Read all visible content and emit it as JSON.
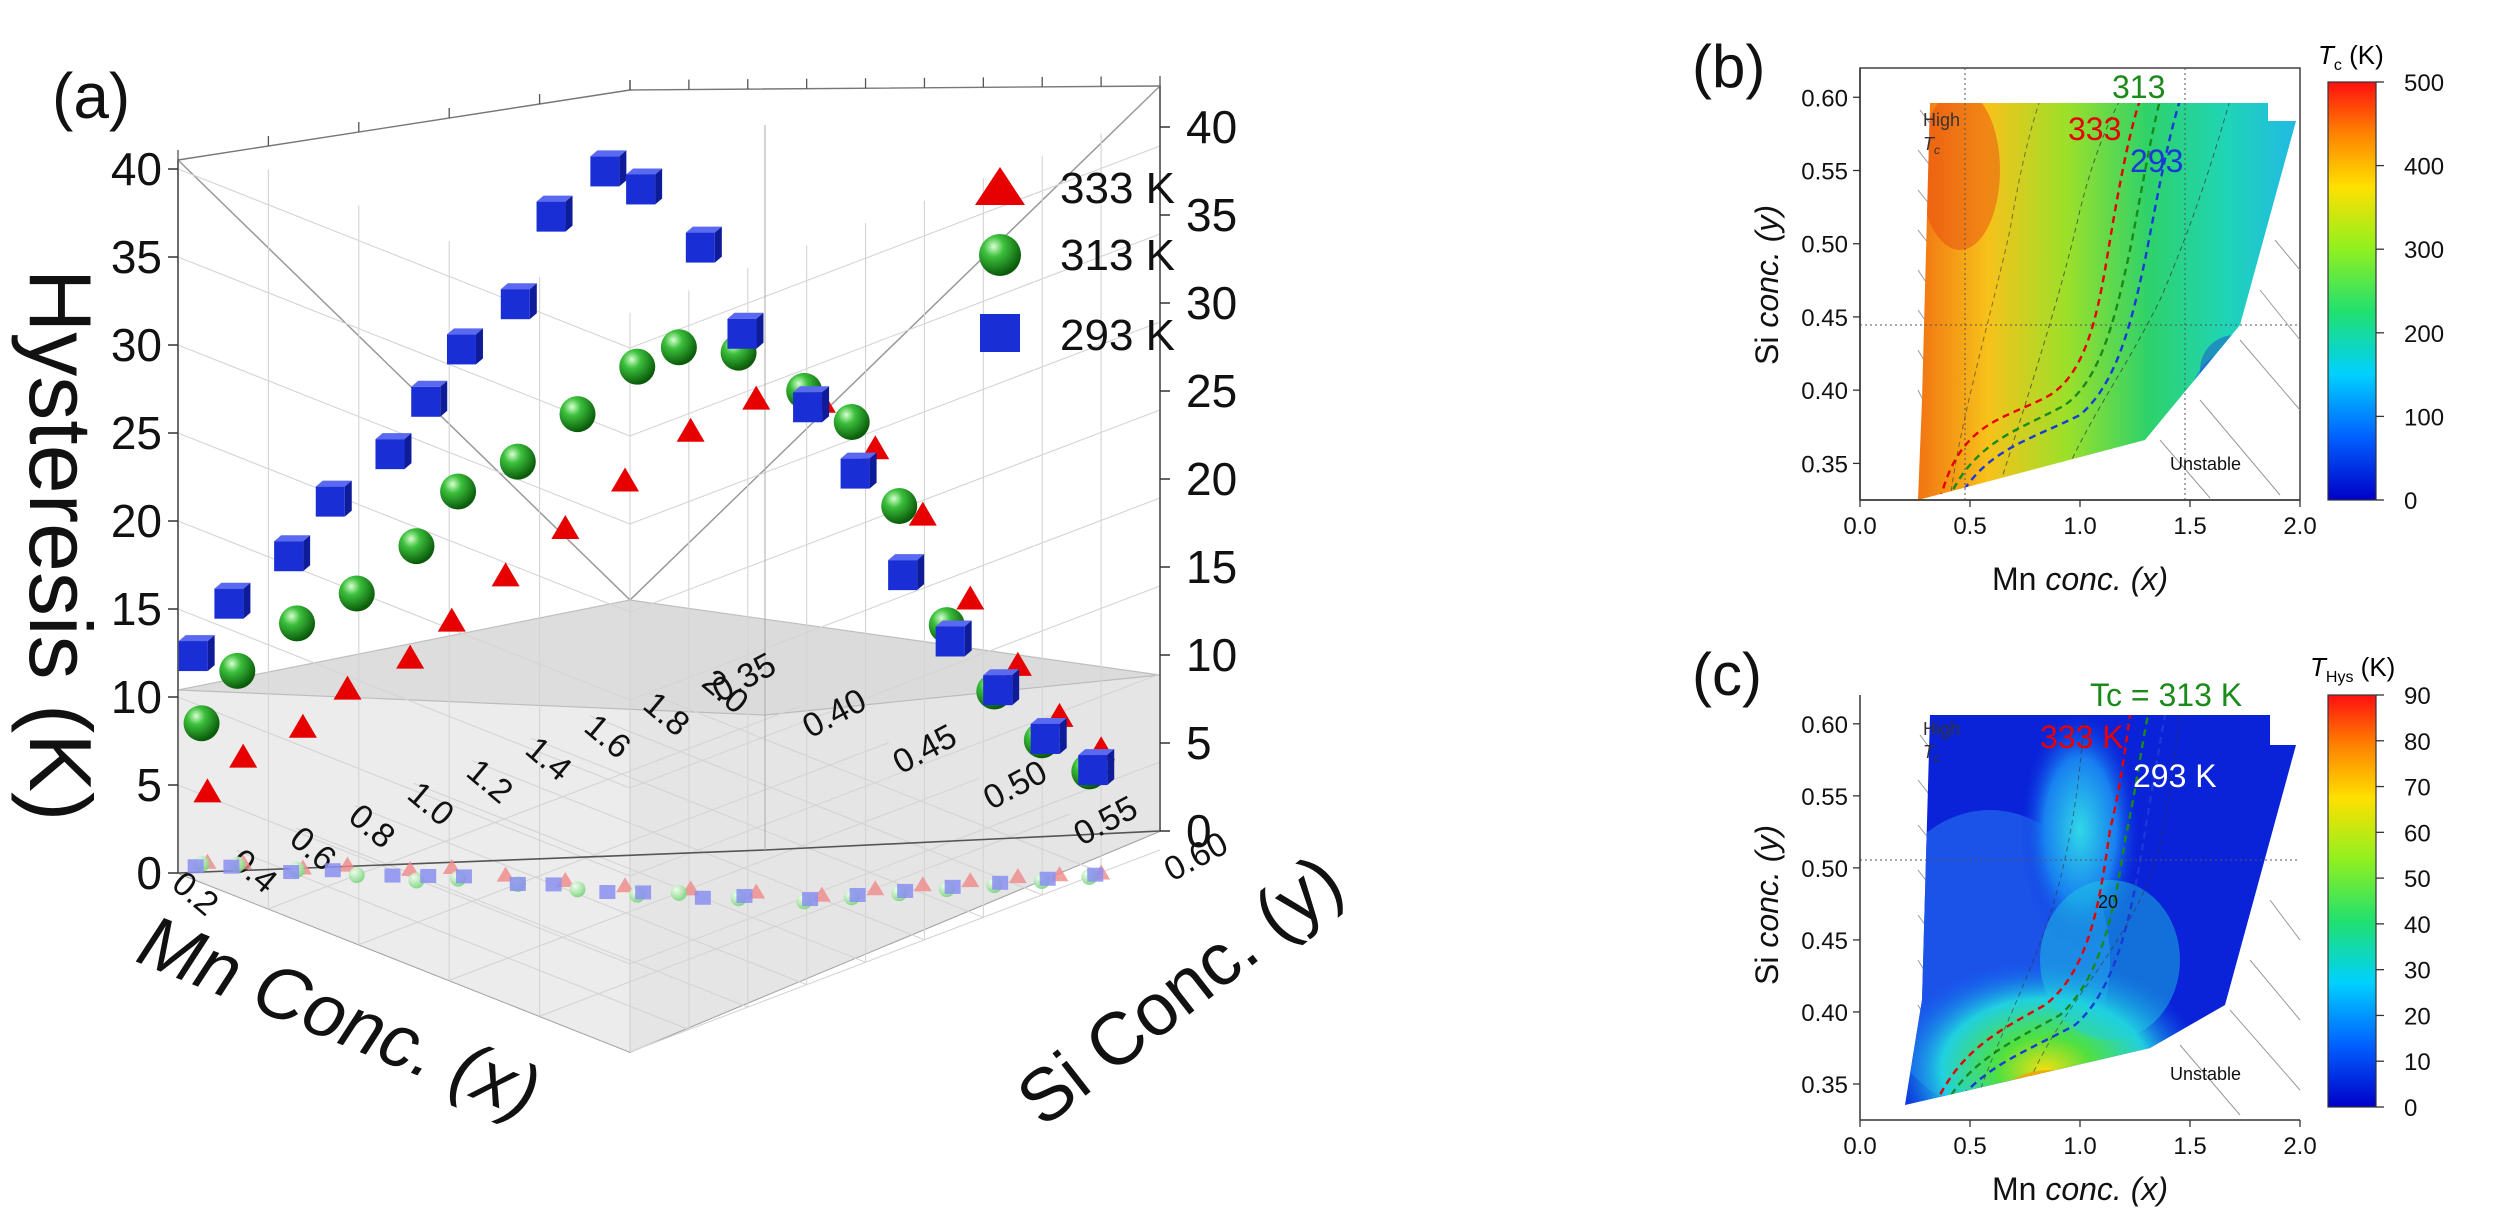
{
  "chart_data": [
    {
      "panel": "(a)",
      "type": "scatter",
      "zlabel": "Hysteresis (K)",
      "xlabel": "Mn Conc. (x)",
      "ylabel": "Si Conc. (y)",
      "xlim": [
        0.2,
        2.0
      ],
      "ylim": [
        0.35,
        0.6
      ],
      "zlim": [
        0,
        42
      ],
      "xticks": [
        "0.2",
        "0.4",
        "0.6",
        "0.8",
        "1.0",
        "1.2",
        "1.4",
        "1.6",
        "1.8",
        "2.0"
      ],
      "yticks": [
        "0.35",
        "0.40",
        "0.45",
        "0.50",
        "0.55",
        "0.60"
      ],
      "zticks": [
        "0",
        "5",
        "10",
        "15",
        "20",
        "25",
        "30",
        "35",
        "40"
      ],
      "legend": [
        "333 K",
        "313 K",
        "293 K"
      ],
      "legend_position": "top-right",
      "series": [
        {
          "name": "333 K",
          "marker": "triangle",
          "color": "#e60000",
          "x": [
            0.3,
            0.36,
            0.44,
            0.53,
            0.62,
            0.7,
            0.76,
            0.84,
            0.92,
            1.02,
            1.12,
            1.22,
            1.34,
            1.44,
            1.54,
            1.64,
            1.72,
            1.8
          ],
          "y": [
            0.35,
            0.36,
            0.38,
            0.39,
            0.41,
            0.42,
            0.44,
            0.46,
            0.48,
            0.5,
            0.52,
            0.54,
            0.55,
            0.56,
            0.57,
            0.58,
            0.59,
            0.6
          ],
          "z": [
            4,
            6,
            8,
            10,
            12,
            14,
            17,
            20,
            23,
            26,
            28,
            28,
            25,
            21,
            16,
            12,
            9,
            7
          ]
        },
        {
          "name": "313 K",
          "marker": "sphere",
          "color": "#1aa81a",
          "x": [
            0.28,
            0.34,
            0.42,
            0.5,
            0.58,
            0.66,
            0.74,
            0.82,
            0.9,
            0.98,
            1.06,
            1.16,
            1.26,
            1.36,
            1.46,
            1.56,
            1.66,
            1.76
          ],
          "y": [
            0.35,
            0.36,
            0.38,
            0.4,
            0.42,
            0.43,
            0.45,
            0.47,
            0.49,
            0.5,
            0.52,
            0.54,
            0.55,
            0.56,
            0.57,
            0.58,
            0.59,
            0.6
          ],
          "z": [
            8,
            11,
            14,
            16,
            19,
            22,
            24,
            27,
            30,
            31,
            31,
            29,
            27,
            22,
            15,
            11,
            8,
            6
          ]
        },
        {
          "name": "293 K",
          "marker": "cube",
          "color": "#1a2ed6",
          "x": [
            0.26,
            0.32,
            0.4,
            0.48,
            0.56,
            0.62,
            0.68,
            0.74,
            0.8,
            0.86,
            0.92,
            1.0,
            1.08,
            1.18,
            1.28,
            1.38,
            1.48,
            1.58,
            1.68,
            1.78
          ],
          "y": [
            0.35,
            0.36,
            0.38,
            0.39,
            0.41,
            0.42,
            0.43,
            0.45,
            0.46,
            0.48,
            0.49,
            0.51,
            0.52,
            0.54,
            0.55,
            0.56,
            0.57,
            0.58,
            0.59,
            0.6
          ],
          "z": [
            12,
            15,
            18,
            21,
            24,
            27,
            30,
            33,
            38,
            41,
            40,
            37,
            32,
            28,
            24,
            18,
            14,
            11,
            8,
            6
          ]
        }
      ]
    },
    {
      "panel": "(b)",
      "type": "heatmap",
      "xlabel_prefix": "Mn ",
      "xlabel_italic": "conc. (x)",
      "ylabel_prefix": "Si ",
      "ylabel_italic": "conc. (y)",
      "xlim": [
        0.0,
        2.0
      ],
      "ylim": [
        0.325,
        0.62
      ],
      "xticks": [
        "0.0",
        "0.5",
        "1.0",
        "1.5",
        "2.0"
      ],
      "yticks": [
        "0.35",
        "0.40",
        "0.45",
        "0.50",
        "0.55",
        "0.60"
      ],
      "colorbar": {
        "title_sym": "T",
        "title_sub": "c",
        "title_unit": " (K)",
        "min": 0,
        "max": 500,
        "ticks": [
          "0",
          "100",
          "200",
          "300",
          "400",
          "500"
        ]
      },
      "contour_labels": [
        {
          "text": "313",
          "color": "#1a8a1a"
        },
        {
          "text": "333",
          "color": "#e60000"
        },
        {
          "text": "293",
          "color": "#1a3ad6"
        }
      ],
      "region_labels": {
        "high": "High",
        "high_sym": "T",
        "high_sub": "c",
        "unstable": "Unstable"
      }
    },
    {
      "panel": "(c)",
      "type": "heatmap",
      "xlabel_prefix": "Mn ",
      "xlabel_italic": "conc. (x)",
      "ylabel_prefix": "Si ",
      "ylabel_italic": "conc. (y)",
      "xlim": [
        0.0,
        2.0
      ],
      "ylim": [
        0.325,
        0.62
      ],
      "xticks": [
        "0.0",
        "0.5",
        "1.0",
        "1.5",
        "2.0"
      ],
      "yticks": [
        "0.35",
        "0.40",
        "0.45",
        "0.50",
        "0.55",
        "0.60"
      ],
      "colorbar": {
        "title_sym": "T",
        "title_sub": "Hys",
        "title_unit": " (K)",
        "min": 0,
        "max": 90,
        "ticks": [
          "0",
          "10",
          "20",
          "30",
          "40",
          "50",
          "60",
          "70",
          "80",
          "90"
        ]
      },
      "contour_labels": [
        {
          "text": "Tc = 313 K",
          "color": "#1a8a1a"
        },
        {
          "text": "333 K",
          "color": "#e60000"
        },
        {
          "text": "293 K",
          "color": "#ffffff"
        },
        {
          "text": "20",
          "color": "#111111"
        }
      ],
      "region_labels": {
        "high": "High",
        "high_sym": "T",
        "high_sub": "c",
        "unstable": "Unstable"
      }
    }
  ]
}
